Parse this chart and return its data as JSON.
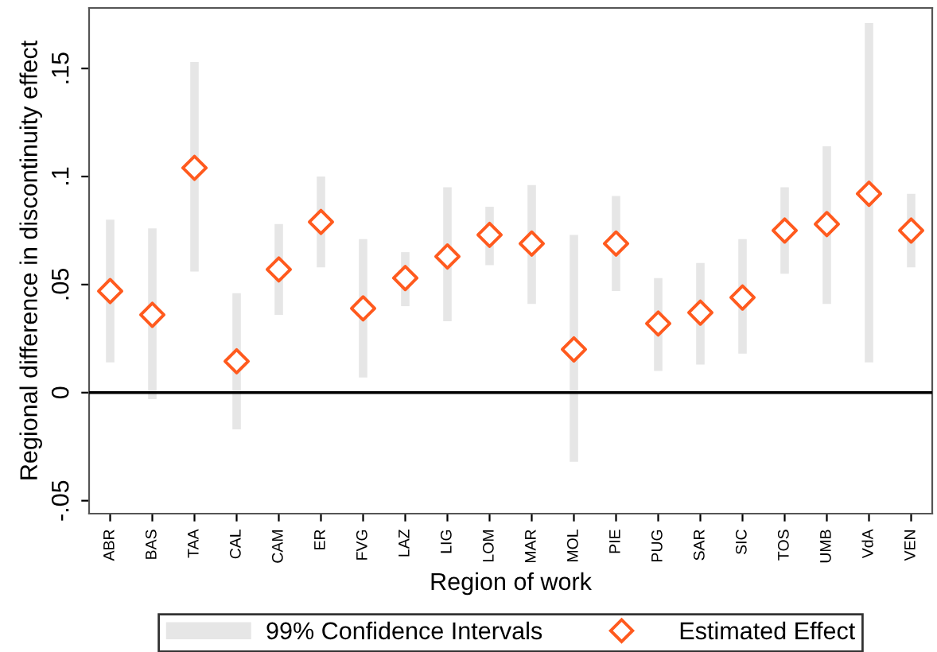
{
  "chart_data": {
    "type": "bar",
    "xlabel": "Region of work",
    "ylabel": "Regional difference in discontinuity effect",
    "categories": [
      "ABR",
      "BAS",
      "TAA",
      "CAL",
      "CAM",
      "ER",
      "FVG",
      "LAZ",
      "LIG",
      "LOM",
      "MAR",
      "MOL",
      "PIE",
      "PUG",
      "SAR",
      "SIC",
      "TOS",
      "UMB",
      "VdA",
      "VEN"
    ],
    "series": [
      {
        "name": "99% Confidence Intervals",
        "color": "#e6e6e6",
        "base": [
          0.014,
          -0.003,
          0.056,
          -0.017,
          0.036,
          0.058,
          0.007,
          0.04,
          0.033,
          0.059,
          0.041,
          -0.032,
          0.047,
          0.01,
          0.013,
          0.018,
          0.055,
          0.041,
          0.014,
          0.058
        ],
        "values": [
          0.066,
          0.079,
          0.097,
          0.063,
          0.042,
          0.042,
          0.064,
          0.025,
          0.062,
          0.027,
          0.055,
          0.105,
          0.044,
          0.043,
          0.047,
          0.053,
          0.04,
          0.073,
          0.157,
          0.034
        ]
      },
      {
        "name": "Estimated Effect",
        "type": "scatter",
        "color": "#ff5a1e",
        "marker": "diamond",
        "values": [
          0.047,
          0.036,
          0.104,
          0.0145,
          0.057,
          0.079,
          0.039,
          0.053,
          0.063,
          0.073,
          0.069,
          0.02,
          0.069,
          0.032,
          0.037,
          0.044,
          0.075,
          0.078,
          0.092,
          0.075
        ]
      }
    ],
    "ylim": [
      -0.056,
      0.178
    ],
    "yticks": [
      {
        "value": -0.05,
        "label": "-.05"
      },
      0,
      {
        "value": 0.05,
        "label": ".05"
      },
      {
        "value": 0.1,
        "label": ".1"
      },
      {
        "value": 0.15,
        "label": ".15"
      }
    ],
    "ref_lines": [
      {
        "axis": "y",
        "value": 0,
        "color": "#000000"
      }
    ],
    "grid": false,
    "legend": "bottom"
  }
}
